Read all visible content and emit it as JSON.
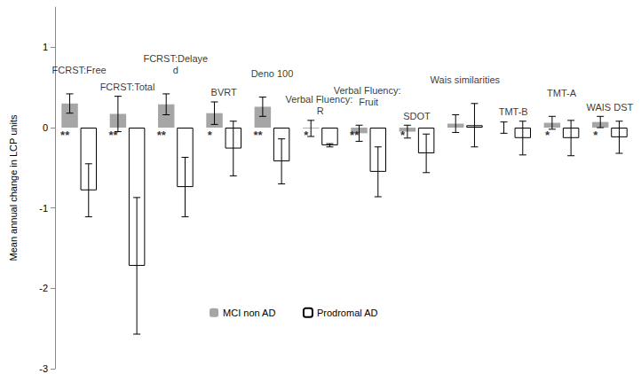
{
  "chart_data": {
    "type": "bar",
    "y_label": "Mean annual change in LCP units",
    "categories": [
      "FCRST:Free",
      "FCRST:Total",
      "FCRST:Delayed",
      "BVRT",
      "Deno 100",
      "Verbal Fluency: R",
      "Verbal Fluency: Fruit",
      "SDOT",
      "Wais similarities",
      "TMT-B",
      "TMT-A",
      "WAIS DST"
    ],
    "series": [
      {
        "name": "MCI non AD",
        "color": "#a6a6a6",
        "values": [
          0.3,
          0.17,
          0.29,
          0.18,
          0.26,
          -0.01,
          -0.07,
          -0.05,
          0.05,
          0.0,
          0.06,
          0.07
        ],
        "errors": [
          0.12,
          0.22,
          0.13,
          0.14,
          0.12,
          0.1,
          0.1,
          0.08,
          0.11,
          0.07,
          0.08,
          0.07
        ]
      },
      {
        "name": "Prodromal AD",
        "color": "#ffffff",
        "values": [
          -0.78,
          -1.72,
          -0.74,
          -0.26,
          -0.42,
          -0.22,
          -0.55,
          -0.32,
          0.03,
          -0.13,
          -0.13,
          -0.12
        ],
        "errors": [
          0.33,
          0.85,
          0.37,
          0.34,
          0.28,
          0.02,
          0.31,
          0.24,
          0.27,
          0.21,
          0.22,
          0.2
        ]
      }
    ],
    "significance": [
      "**",
      "**",
      "**",
      "*",
      "**",
      "*",
      "**",
      "*",
      null,
      null,
      "*",
      "*"
    ],
    "ylim": [
      -3,
      1.5
    ],
    "yticks": [
      -3,
      -2,
      -1,
      0,
      1
    ],
    "grid": false,
    "legend": "bottom"
  }
}
